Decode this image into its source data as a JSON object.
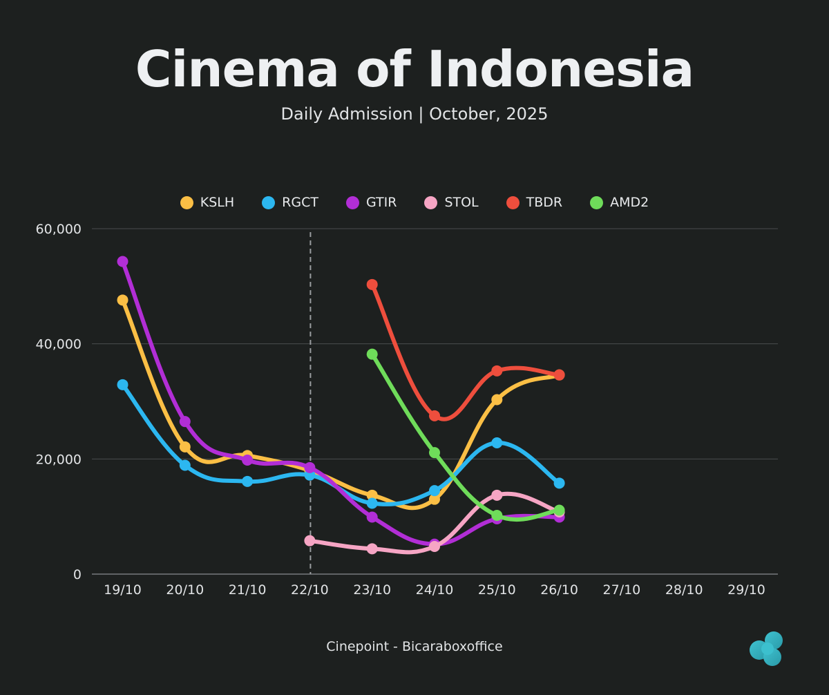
{
  "title": "Cinema of Indonesia",
  "subtitle": "Daily Admission | October, 2025",
  "source": "Cinepoint - Bicaraboxoffice",
  "logo_icon": "cloud-logo-icon",
  "chart_data": {
    "type": "line",
    "categories": [
      "19/10",
      "20/10",
      "21/10",
      "22/10",
      "23/10",
      "24/10",
      "25/10",
      "26/10",
      "27/10",
      "28/10",
      "29/10"
    ],
    "ylim": [
      0,
      60000
    ],
    "yticks": [
      "0",
      "20,000",
      "40,000",
      "60,000"
    ],
    "ytick_values": [
      0,
      20000,
      40000,
      60000
    ],
    "grid": true,
    "legend_position": "top-center",
    "marker_line_category": "22/10",
    "series": [
      {
        "name": "KSLH",
        "color": "#fbbf45",
        "values": [
          47600,
          22100,
          20600,
          18000,
          13700,
          13000,
          30300,
          34600,
          null,
          null,
          null
        ]
      },
      {
        "name": "RGCT",
        "color": "#2cb7f0",
        "values": [
          32900,
          18900,
          16100,
          17200,
          12300,
          14500,
          22800,
          15800,
          null,
          null,
          null
        ]
      },
      {
        "name": "GTIR",
        "color": "#b22ed6",
        "values": [
          54300,
          26500,
          19800,
          18500,
          9900,
          5200,
          9600,
          9900,
          null,
          null,
          null
        ]
      },
      {
        "name": "STOL",
        "color": "#f6a5c4",
        "values": [
          null,
          null,
          null,
          5800,
          4400,
          4800,
          13700,
          10800,
          null,
          null,
          null
        ]
      },
      {
        "name": "TBDR",
        "color": "#ee4e3d",
        "values": [
          null,
          null,
          null,
          null,
          50300,
          27500,
          35300,
          34600,
          null,
          null,
          null
        ]
      },
      {
        "name": "AMD2",
        "color": "#6fdc5a",
        "values": [
          null,
          null,
          null,
          null,
          38200,
          21100,
          10200,
          11100,
          null,
          null,
          null
        ]
      }
    ]
  }
}
